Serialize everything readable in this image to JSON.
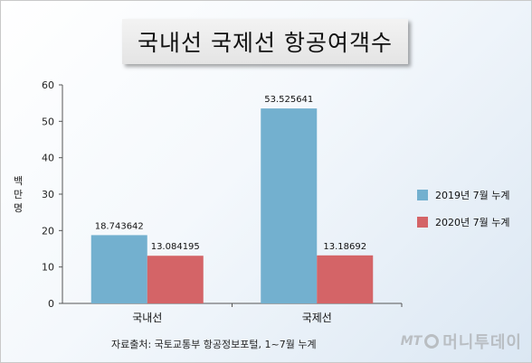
{
  "title": "국내선 국제선 항공여객수",
  "source": "자료출처: 국토교통부 항공정보포털, 1~7월 누계",
  "watermark": {
    "mt": "MT",
    "name": "머니투데이"
  },
  "colors": {
    "series_2019": "#73b0cf",
    "series_2020": "#d46467"
  },
  "chart_data": {
    "type": "bar",
    "categories": [
      "국내선",
      "국제선"
    ],
    "series": [
      {
        "name": "2019년 7월 누계",
        "values": [
          18.743642,
          53.525641
        ]
      },
      {
        "name": "2020년 7월 누계",
        "values": [
          13.084195,
          13.18692
        ]
      }
    ],
    "data_labels": [
      [
        "18.743642",
        "53.525641"
      ],
      [
        "13.084195",
        "13.18692"
      ]
    ],
    "ylabel": "백만명",
    "xlabel": "",
    "ylim": [
      0,
      60
    ],
    "yticks": [
      0,
      10,
      20,
      30,
      40,
      50,
      60
    ],
    "grid": false,
    "legend": "right"
  }
}
